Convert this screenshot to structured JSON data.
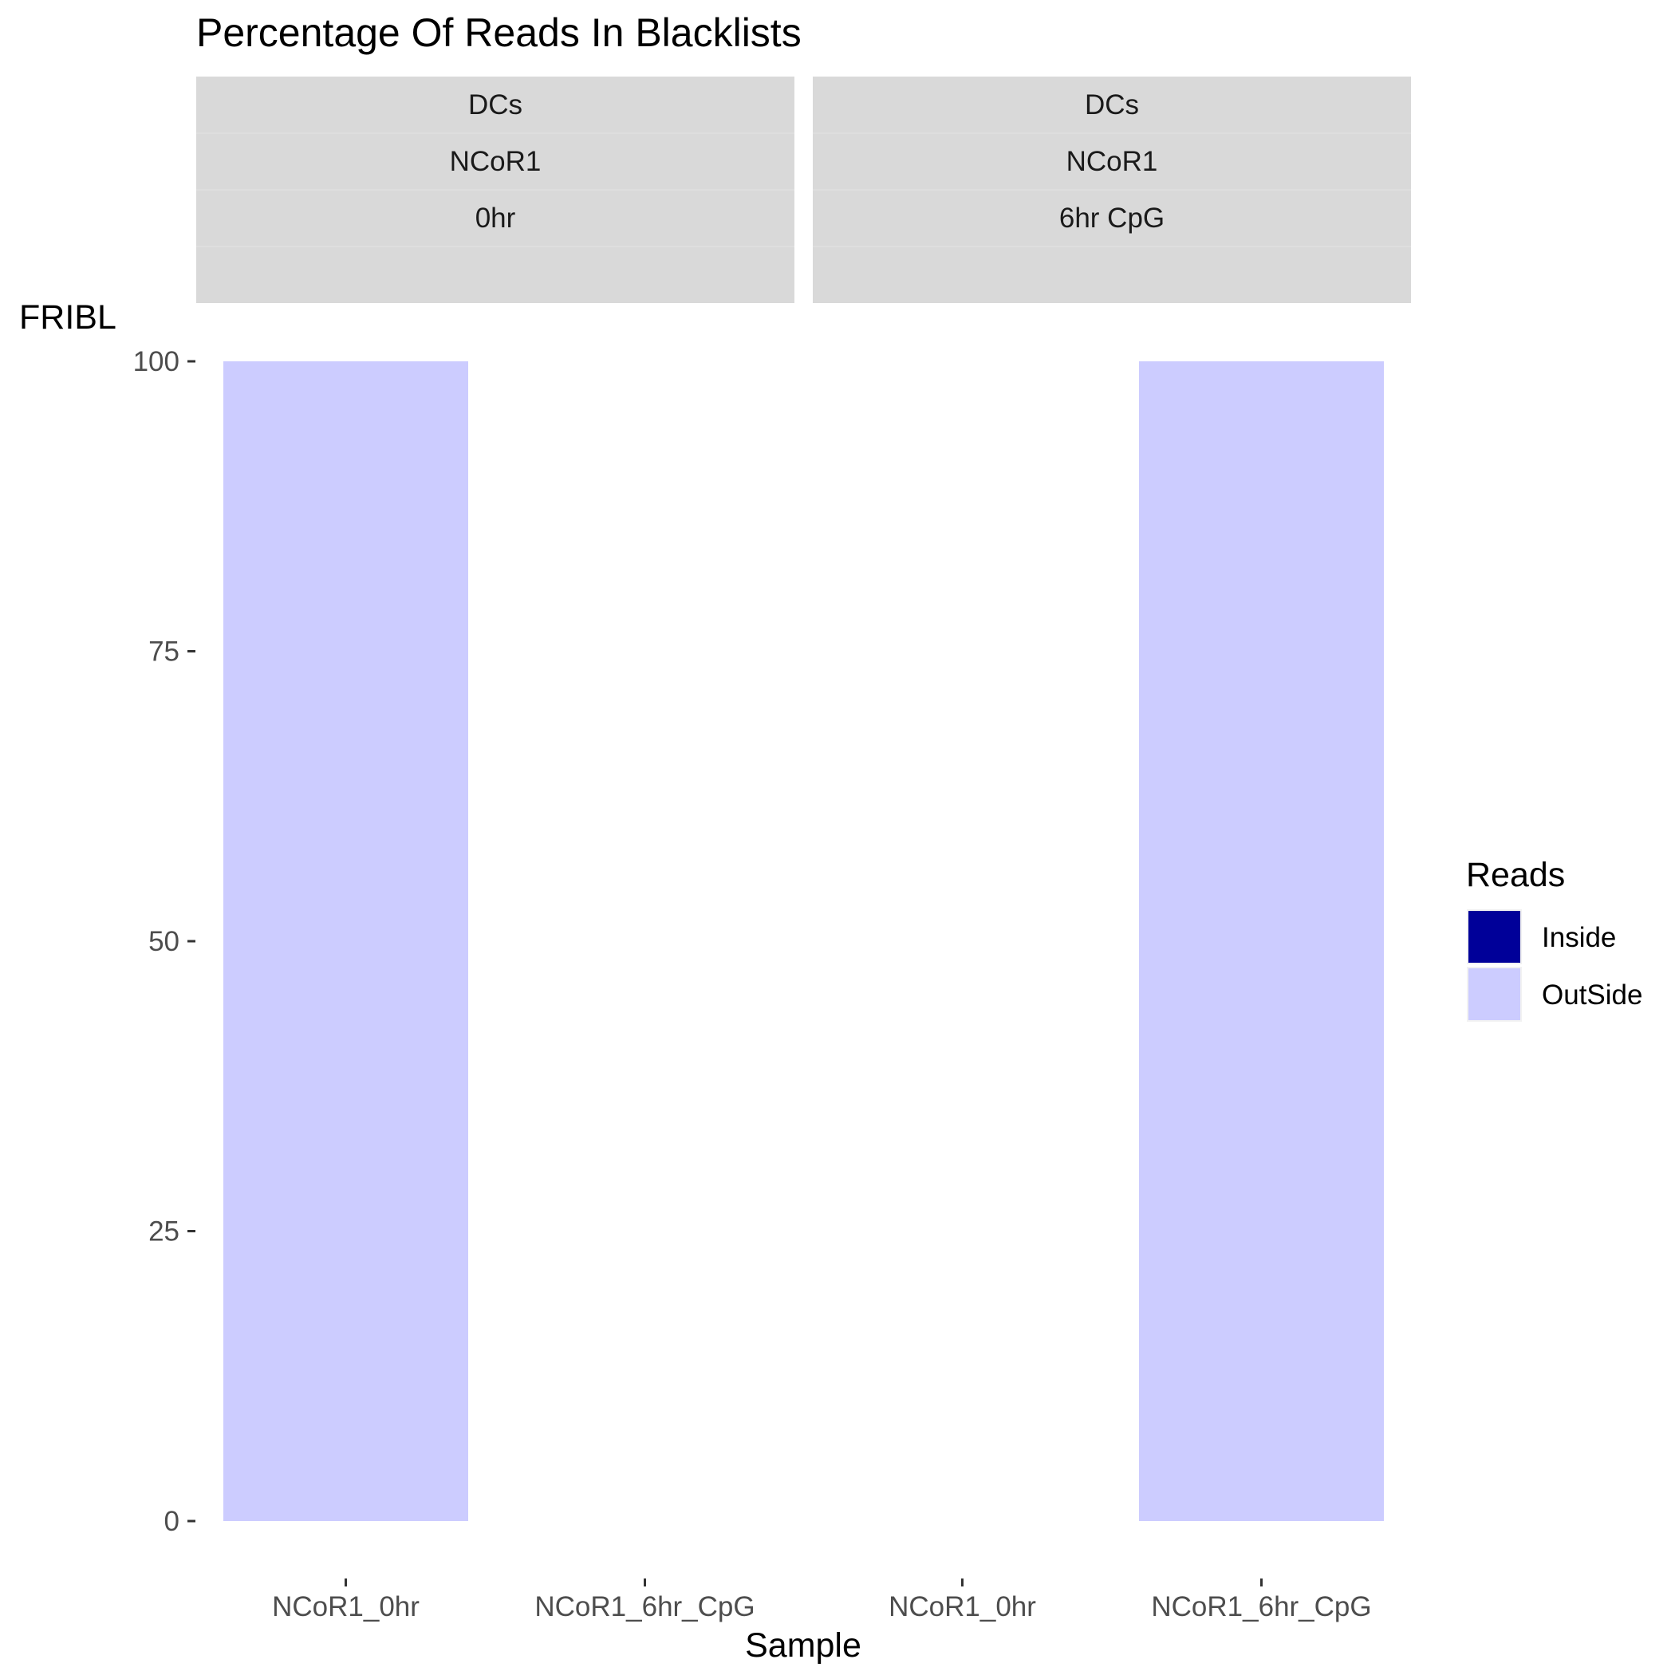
{
  "chart_data": {
    "type": "bar",
    "title": "Percentage Of Reads In Blacklists",
    "xlabel": "Sample",
    "ylabel": "FRIBL",
    "ylim": [
      0,
      100
    ],
    "yticks": [
      0,
      25,
      50,
      75,
      100
    ],
    "grid": false,
    "stacked": true,
    "legend": {
      "title": "Reads",
      "placement": "right",
      "entries": [
        {
          "label": "Inside",
          "color": "#000099"
        },
        {
          "label": "OutSide",
          "color": "#ccccff"
        }
      ]
    },
    "facets": [
      {
        "strips": [
          "DCs",
          "NCoR1",
          "0hr",
          ""
        ],
        "categories": [
          "NCoR1_0hr",
          "NCoR1_6hr_CpG"
        ],
        "series": [
          {
            "name": "Inside",
            "values": [
              0,
              0
            ]
          },
          {
            "name": "OutSide",
            "values": [
              100,
              0
            ]
          }
        ]
      },
      {
        "strips": [
          "DCs",
          "NCoR1",
          "6hr CpG",
          ""
        ],
        "categories": [
          "NCoR1_0hr",
          "NCoR1_6hr_CpG"
        ],
        "series": [
          {
            "name": "Inside",
            "values": [
              0,
              0
            ]
          },
          {
            "name": "OutSide",
            "values": [
              0,
              100
            ]
          }
        ]
      }
    ]
  }
}
